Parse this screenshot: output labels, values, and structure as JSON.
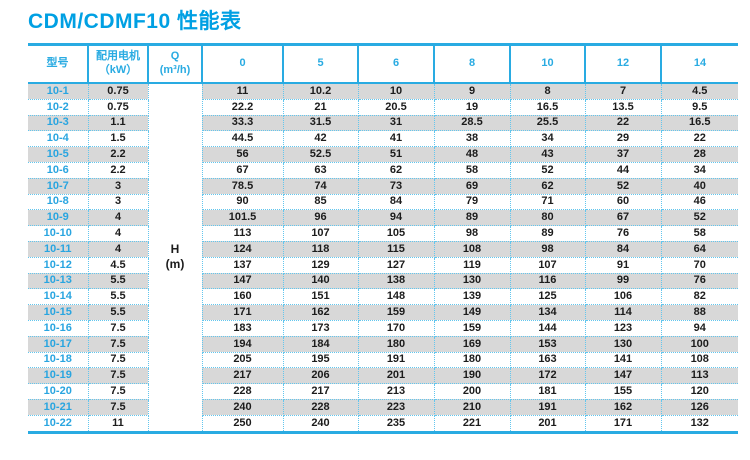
{
  "title": "CDM/CDMF10 性能表",
  "table": {
    "headers": {
      "model": "型号",
      "motor_line1": "配用电机",
      "motor_line2": "（kW）",
      "q_line1": "Q",
      "q_line2": "(m³/h)",
      "flow_columns": [
        "0",
        "5",
        "6",
        "8",
        "10",
        "12",
        "14"
      ]
    },
    "h_cell": {
      "line1": "H",
      "line2": "(m)"
    },
    "rows": [
      {
        "model": "10-1",
        "kw": "0.75",
        "h_values": [
          "11",
          "10.2",
          "10",
          "9",
          "8",
          "7",
          "4.5"
        ]
      },
      {
        "model": "10-2",
        "kw": "0.75",
        "h_values": [
          "22.2",
          "21",
          "20.5",
          "19",
          "16.5",
          "13.5",
          "9.5"
        ]
      },
      {
        "model": "10-3",
        "kw": "1.1",
        "h_values": [
          "33.3",
          "31.5",
          "31",
          "28.5",
          "25.5",
          "22",
          "16.5"
        ]
      },
      {
        "model": "10-4",
        "kw": "1.5",
        "h_values": [
          "44.5",
          "42",
          "41",
          "38",
          "34",
          "29",
          "22"
        ]
      },
      {
        "model": "10-5",
        "kw": "2.2",
        "h_values": [
          "56",
          "52.5",
          "51",
          "48",
          "43",
          "37",
          "28"
        ]
      },
      {
        "model": "10-6",
        "kw": "2.2",
        "h_values": [
          "67",
          "63",
          "62",
          "58",
          "52",
          "44",
          "34"
        ]
      },
      {
        "model": "10-7",
        "kw": "3",
        "h_values": [
          "78.5",
          "74",
          "73",
          "69",
          "62",
          "52",
          "40"
        ]
      },
      {
        "model": "10-8",
        "kw": "3",
        "h_values": [
          "90",
          "85",
          "84",
          "79",
          "71",
          "60",
          "46"
        ]
      },
      {
        "model": "10-9",
        "kw": "4",
        "h_values": [
          "101.5",
          "96",
          "94",
          "89",
          "80",
          "67",
          "52"
        ]
      },
      {
        "model": "10-10",
        "kw": "4",
        "h_values": [
          "113",
          "107",
          "105",
          "98",
          "89",
          "76",
          "58"
        ]
      },
      {
        "model": "10-11",
        "kw": "4",
        "h_values": [
          "124",
          "118",
          "115",
          "108",
          "98",
          "84",
          "64"
        ]
      },
      {
        "model": "10-12",
        "kw": "4.5",
        "h_values": [
          "137",
          "129",
          "127",
          "119",
          "107",
          "91",
          "70"
        ]
      },
      {
        "model": "10-13",
        "kw": "5.5",
        "h_values": [
          "147",
          "140",
          "138",
          "130",
          "116",
          "99",
          "76"
        ]
      },
      {
        "model": "10-14",
        "kw": "5.5",
        "h_values": [
          "160",
          "151",
          "148",
          "139",
          "125",
          "106",
          "82"
        ]
      },
      {
        "model": "10-15",
        "kw": "5.5",
        "h_values": [
          "171",
          "162",
          "159",
          "149",
          "134",
          "114",
          "88"
        ]
      },
      {
        "model": "10-16",
        "kw": "7.5",
        "h_values": [
          "183",
          "173",
          "170",
          "159",
          "144",
          "123",
          "94"
        ]
      },
      {
        "model": "10-17",
        "kw": "7.5",
        "h_values": [
          "194",
          "184",
          "180",
          "169",
          "153",
          "130",
          "100"
        ]
      },
      {
        "model": "10-18",
        "kw": "7.5",
        "h_values": [
          "205",
          "195",
          "191",
          "180",
          "163",
          "141",
          "108"
        ]
      },
      {
        "model": "10-19",
        "kw": "7.5",
        "h_values": [
          "217",
          "206",
          "201",
          "190",
          "172",
          "147",
          "113"
        ]
      },
      {
        "model": "10-20",
        "kw": "7.5",
        "h_values": [
          "228",
          "217",
          "213",
          "200",
          "181",
          "155",
          "120"
        ]
      },
      {
        "model": "10-21",
        "kw": "7.5",
        "h_values": [
          "240",
          "228",
          "223",
          "210",
          "191",
          "162",
          "126"
        ]
      },
      {
        "model": "10-22",
        "kw": "11",
        "h_values": [
          "250",
          "240",
          "235",
          "221",
          "201",
          "171",
          "132"
        ]
      }
    ]
  },
  "colors": {
    "accent_blue": "#29abe2",
    "title_blue": "#00a0e3",
    "model_blue": "#29a5e0",
    "row_gray": "#d8d8d8",
    "dotted_blue": "#62c6ee",
    "text_dark": "#1c1c1c"
  }
}
